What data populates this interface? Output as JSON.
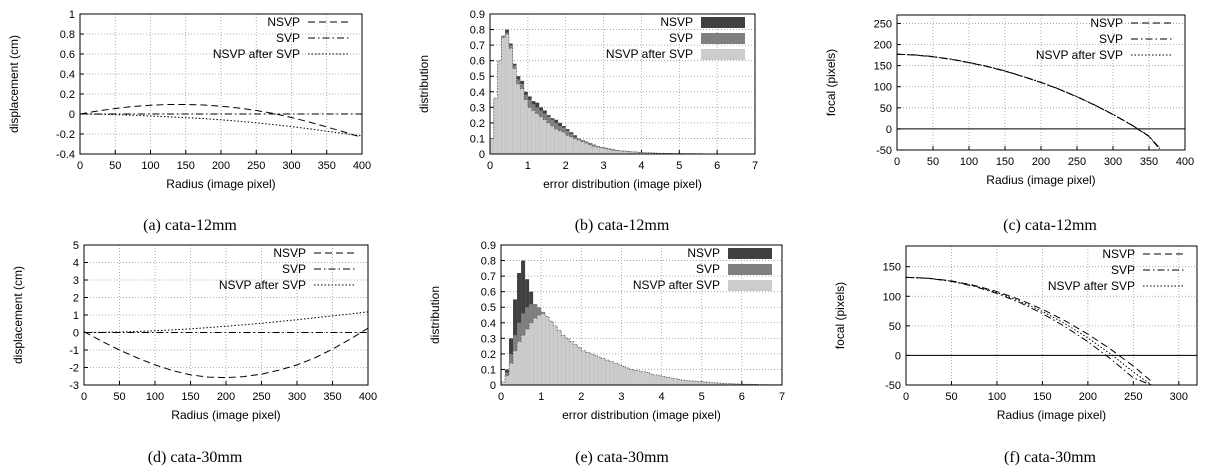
{
  "chart_data": [
    {
      "type": "line",
      "caption": "(a) cata-12mm",
      "xlabel": "Radius (image pixel)",
      "ylabel": "displacement (cm)",
      "xlim": [
        0,
        400
      ],
      "ylim": [
        -0.4,
        1
      ],
      "xticks": [
        "0",
        "50",
        "100",
        "150",
        "200",
        "250",
        "300",
        "350",
        "400"
      ],
      "yticks": [
        "-0.4",
        "-0.2",
        "0",
        "0.2",
        "0.4",
        "0.6",
        "0.8",
        "1"
      ],
      "grid": true,
      "legend": "top-right",
      "x": [
        0,
        25,
        50,
        75,
        100,
        125,
        150,
        175,
        200,
        225,
        250,
        275,
        300,
        325,
        350,
        375,
        400
      ],
      "series": [
        {
          "name": "NSVP",
          "style": "dashed",
          "values": [
            0,
            0.03,
            0.055,
            0.075,
            0.088,
            0.095,
            0.095,
            0.09,
            0.078,
            0.06,
            0.035,
            0.005,
            -0.035,
            -0.08,
            -0.13,
            -0.18,
            -0.235
          ]
        },
        {
          "name": "SVP",
          "style": "dashdot",
          "values": [
            0,
            0,
            0,
            0,
            0,
            0,
            0,
            0,
            0,
            0,
            0,
            0,
            0,
            0,
            0,
            0,
            0
          ]
        },
        {
          "name": "NSVP after SVP",
          "style": "dotted",
          "values": [
            0,
            -0.002,
            -0.006,
            -0.012,
            -0.02,
            -0.028,
            -0.036,
            -0.046,
            -0.058,
            -0.072,
            -0.088,
            -0.106,
            -0.126,
            -0.148,
            -0.172,
            -0.196,
            -0.22
          ]
        }
      ]
    },
    {
      "type": "bar",
      "caption": "(b) cata-12mm",
      "xlabel": "error distribution (image pixel)",
      "ylabel": "distribution",
      "xlim": [
        0,
        7
      ],
      "ylim": [
        0,
        0.9
      ],
      "xticks": [
        "0",
        "1",
        "2",
        "3",
        "4",
        "5",
        "6",
        "7"
      ],
      "yticks": [
        "0",
        "0.1",
        "0.2",
        "0.3",
        "0.4",
        "0.5",
        "0.6",
        "0.7",
        "0.8",
        "0.9"
      ],
      "grid": true,
      "legend": "top-right",
      "bin_width": 0.1,
      "series": [
        {
          "name": "NSVP",
          "color": "#404040",
          "values": [
            0.1,
            0.36,
            0.6,
            0.76,
            0.8,
            0.71,
            0.58,
            0.5,
            0.47,
            0.4,
            0.37,
            0.34,
            0.33,
            0.3,
            0.28,
            0.25,
            0.23,
            0.22,
            0.2,
            0.18,
            0.16,
            0.14,
            0.12,
            0.1,
            0.09,
            0.08,
            0.07,
            0.06,
            0.05,
            0.045,
            0.04,
            0.035,
            0.03,
            0.025,
            0.022,
            0.02,
            0.018,
            0.016,
            0.014,
            0.012,
            0.01,
            0.009,
            0.008,
            0.007,
            0.006,
            0.005,
            0.005,
            0.004,
            0.004,
            0.003,
            0.003,
            0.003,
            0.002,
            0.002,
            0.002,
            0.002,
            0.002,
            0.001,
            0.001,
            0.001
          ]
        },
        {
          "name": "SVP",
          "color": "#808080",
          "values": [
            0.1,
            0.36,
            0.6,
            0.76,
            0.78,
            0.7,
            0.57,
            0.48,
            0.45,
            0.38,
            0.35,
            0.32,
            0.3,
            0.28,
            0.26,
            0.24,
            0.22,
            0.2,
            0.18,
            0.17,
            0.15,
            0.13,
            0.11,
            0.1,
            0.09,
            0.08,
            0.07,
            0.06,
            0.05,
            0.045,
            0.04,
            0.035,
            0.03,
            0.025,
            0.022,
            0.02,
            0.018,
            0.016,
            0.014,
            0.012,
            0.01,
            0.009,
            0.008,
            0.007,
            0.006,
            0.005,
            0.005,
            0.004,
            0.004,
            0.003,
            0.003,
            0.003,
            0.002,
            0.002,
            0.002,
            0.002,
            0.002,
            0.001,
            0.001,
            0.001
          ]
        },
        {
          "name": "NSVP after SVP",
          "color": "#cccccc",
          "values": [
            0.1,
            0.36,
            0.6,
            0.75,
            0.77,
            0.68,
            0.55,
            0.45,
            0.42,
            0.35,
            0.3,
            0.28,
            0.26,
            0.24,
            0.22,
            0.2,
            0.18,
            0.16,
            0.15,
            0.14,
            0.12,
            0.11,
            0.1,
            0.09,
            0.08,
            0.07,
            0.06,
            0.05,
            0.045,
            0.04,
            0.035,
            0.03,
            0.025,
            0.022,
            0.02,
            0.018,
            0.016,
            0.014,
            0.012,
            0.01,
            0.009,
            0.008,
            0.007,
            0.006,
            0.005,
            0.005,
            0.004,
            0.004,
            0.003,
            0.003,
            0.003,
            0.002,
            0.002,
            0.002,
            0.002,
            0.002,
            0.001,
            0.001,
            0.001,
            0.001
          ]
        }
      ]
    },
    {
      "type": "line",
      "caption": "(c) cata-12mm",
      "xlabel": "Radius (image pixel)",
      "ylabel": "focal (pixels)",
      "xlim": [
        0,
        400
      ],
      "ylim": [
        -50,
        270
      ],
      "xticks": [
        "0",
        "50",
        "100",
        "150",
        "200",
        "250",
        "300",
        "350",
        "400"
      ],
      "yticks": [
        "-50",
        "0",
        "50",
        "100",
        "150",
        "200",
        "250"
      ],
      "grid": true,
      "legend": "top-right",
      "x": [
        0,
        25,
        50,
        75,
        100,
        125,
        150,
        175,
        200,
        225,
        250,
        275,
        300,
        325,
        350,
        365
      ],
      "series": [
        {
          "name": "NSVP",
          "style": "dashed",
          "values": [
            177,
            175,
            171,
            165,
            157,
            148,
            137,
            124,
            110,
            94,
            76,
            56,
            34,
            10,
            -18,
            -48
          ]
        },
        {
          "name": "SVP",
          "style": "dashdot",
          "values": [
            177,
            175.5,
            171.5,
            165.5,
            157.5,
            148.5,
            137.5,
            124.5,
            110.5,
            94.5,
            76.5,
            56.5,
            34.5,
            10.5,
            -17,
            -46
          ]
        },
        {
          "name": "NSVP after SVP",
          "style": "dotted",
          "values": [
            177,
            175.2,
            171.2,
            165.2,
            157.2,
            148.2,
            137.2,
            124.2,
            110.2,
            94.2,
            76.2,
            56.2,
            34.2,
            10.2,
            -17.5,
            -47
          ]
        }
      ]
    },
    {
      "type": "line",
      "caption": "(d) cata-30mm",
      "xlabel": "Radius (image pixel)",
      "ylabel": "displacement (cm)",
      "xlim": [
        0,
        400
      ],
      "ylim": [
        -3,
        5
      ],
      "xticks": [
        "0",
        "50",
        "100",
        "150",
        "200",
        "250",
        "300",
        "350",
        "400"
      ],
      "yticks": [
        "-3",
        "-2",
        "-1",
        "0",
        "1",
        "2",
        "3",
        "4",
        "5"
      ],
      "grid": true,
      "legend": "top-right",
      "x": [
        0,
        25,
        50,
        75,
        100,
        125,
        150,
        175,
        200,
        225,
        250,
        275,
        300,
        325,
        350,
        375,
        400
      ],
      "series": [
        {
          "name": "NSVP",
          "style": "dashed",
          "values": [
            0.05,
            -0.5,
            -1.0,
            -1.45,
            -1.85,
            -2.18,
            -2.42,
            -2.55,
            -2.58,
            -2.52,
            -2.38,
            -2.15,
            -1.85,
            -1.45,
            -0.95,
            -0.38,
            0.25
          ]
        },
        {
          "name": "SVP",
          "style": "dashdot",
          "values": [
            0,
            0,
            0,
            0,
            0,
            0,
            0,
            0,
            0,
            0,
            0,
            0,
            0,
            0,
            0,
            0,
            0
          ]
        },
        {
          "name": "NSVP after SVP",
          "style": "dotted",
          "values": [
            0,
            0.01,
            0.03,
            0.06,
            0.1,
            0.15,
            0.21,
            0.28,
            0.36,
            0.44,
            0.53,
            0.63,
            0.73,
            0.84,
            0.95,
            1.06,
            1.18
          ]
        }
      ]
    },
    {
      "type": "bar",
      "caption": "(e) cata-30mm",
      "xlabel": "error distribution (image pixel)",
      "ylabel": "distribution",
      "xlim": [
        0,
        7
      ],
      "ylim": [
        0,
        0.9
      ],
      "xticks": [
        "0",
        "1",
        "2",
        "3",
        "4",
        "5",
        "6",
        "7"
      ],
      "yticks": [
        "0",
        "0.1",
        "0.2",
        "0.3",
        "0.4",
        "0.5",
        "0.6",
        "0.7",
        "0.8",
        "0.9"
      ],
      "grid": true,
      "legend": "top-right",
      "bin_width": 0.1,
      "series": [
        {
          "name": "NSVP",
          "color": "#404040",
          "values": [
            0.02,
            0.1,
            0.3,
            0.55,
            0.72,
            0.8,
            0.68,
            0.6,
            0.52,
            0.48,
            0.46,
            0.43,
            0.4,
            0.37,
            0.34,
            0.31,
            0.29,
            0.27,
            0.25,
            0.23,
            0.21,
            0.2,
            0.19,
            0.18,
            0.17,
            0.16,
            0.15,
            0.14,
            0.13,
            0.12,
            0.11,
            0.1,
            0.09,
            0.085,
            0.08,
            0.075,
            0.07,
            0.065,
            0.06,
            0.055,
            0.05,
            0.045,
            0.04,
            0.035,
            0.03,
            0.028,
            0.026,
            0.024,
            0.022,
            0.02,
            0.018,
            0.016,
            0.014,
            0.012,
            0.01,
            0.01,
            0.008,
            0.008,
            0.006,
            0.006,
            0.005,
            0.005,
            0.004,
            0.004,
            0.003,
            0.003,
            0.002,
            0.002,
            0.002,
            0.002
          ]
        },
        {
          "name": "SVP",
          "color": "#808080",
          "values": [
            0.02,
            0.08,
            0.2,
            0.32,
            0.4,
            0.46,
            0.5,
            0.52,
            0.52,
            0.5,
            0.47,
            0.44,
            0.41,
            0.38,
            0.35,
            0.32,
            0.3,
            0.28,
            0.26,
            0.24,
            0.22,
            0.21,
            0.2,
            0.19,
            0.18,
            0.17,
            0.16,
            0.15,
            0.14,
            0.13,
            0.12,
            0.11,
            0.1,
            0.095,
            0.09,
            0.085,
            0.08,
            0.07,
            0.065,
            0.06,
            0.055,
            0.05,
            0.045,
            0.04,
            0.035,
            0.03,
            0.028,
            0.026,
            0.024,
            0.022,
            0.02,
            0.018,
            0.016,
            0.014,
            0.012,
            0.01,
            0.009,
            0.008,
            0.007,
            0.006,
            0.005,
            0.005,
            0.004,
            0.004,
            0.003,
            0.003,
            0.002,
            0.002,
            0.002,
            0.002
          ]
        },
        {
          "name": "NSVP after SVP",
          "color": "#cccccc",
          "values": [
            0.02,
            0.06,
            0.14,
            0.22,
            0.28,
            0.32,
            0.36,
            0.4,
            0.43,
            0.45,
            0.46,
            0.44,
            0.41,
            0.38,
            0.35,
            0.32,
            0.3,
            0.28,
            0.26,
            0.24,
            0.22,
            0.21,
            0.2,
            0.19,
            0.18,
            0.17,
            0.16,
            0.15,
            0.14,
            0.13,
            0.12,
            0.11,
            0.1,
            0.095,
            0.09,
            0.085,
            0.08,
            0.07,
            0.065,
            0.06,
            0.055,
            0.05,
            0.045,
            0.04,
            0.035,
            0.03,
            0.028,
            0.026,
            0.024,
            0.022,
            0.02,
            0.018,
            0.016,
            0.014,
            0.012,
            0.01,
            0.009,
            0.008,
            0.007,
            0.006,
            0.005,
            0.005,
            0.004,
            0.004,
            0.003,
            0.003,
            0.002,
            0.002,
            0.002,
            0.002
          ]
        }
      ]
    },
    {
      "type": "line",
      "caption": "(f) cata-30mm",
      "xlabel": "Radius (image pixel)",
      "ylabel": "focal (pixels)",
      "xlim": [
        0,
        320
      ],
      "ylim": [
        -50,
        185
      ],
      "xticks": [
        "0",
        "50",
        "100",
        "150",
        "200",
        "250",
        "300"
      ],
      "yticks": [
        "-50",
        "0",
        "50",
        "100",
        "150"
      ],
      "grid": true,
      "legend": "top-right",
      "x": [
        0,
        25,
        50,
        75,
        100,
        125,
        150,
        175,
        200,
        225,
        250,
        270
      ],
      "series": [
        {
          "name": "NSVP",
          "style": "dashed",
          "values": [
            132,
            130.5,
            126,
            118.5,
            108,
            94.5,
            78,
            58.5,
            36,
            10.5,
            -18,
            -44
          ]
        },
        {
          "name": "SVP",
          "style": "dashdot",
          "values": [
            132,
            130.3,
            125.2,
            116.7,
            104.8,
            89.5,
            70.8,
            48.7,
            23.2,
            -5.7,
            -38,
            -50
          ]
        },
        {
          "name": "NSVP after SVP",
          "style": "dotted",
          "values": [
            132,
            130.4,
            125.6,
            117.6,
            106.4,
            92,
            74.4,
            53.6,
            29.6,
            2.4,
            -28,
            -50
          ]
        }
      ]
    }
  ]
}
